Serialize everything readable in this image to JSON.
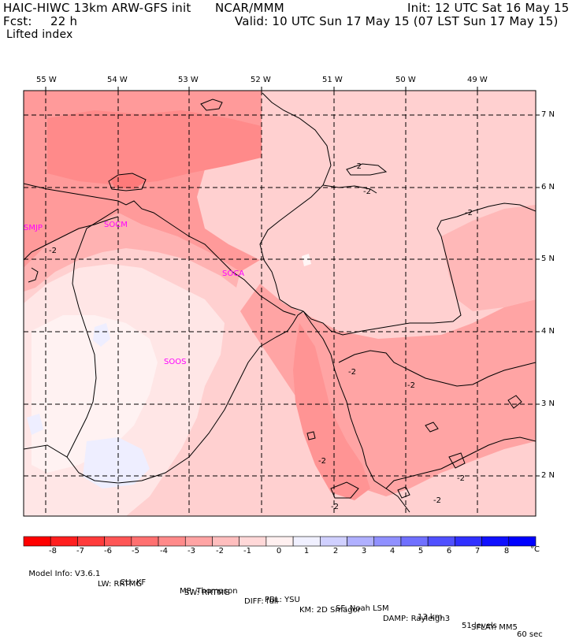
{
  "header": {
    "model_title": "HAIC-HIWC 13km ARW-GFS init",
    "org": "NCAR/MMM",
    "init": "Init: 12 UTC Sat 16 May 15",
    "fcst_label": "Fcst:",
    "fcst_value": "22 h",
    "valid": "Valid: 10 UTC Sun 17 May 15 (07 LST Sun 17 May 15)",
    "field": "Lifted index"
  },
  "axes": {
    "lon_labels": [
      "55 W",
      "54 W",
      "53 W",
      "52 W",
      "51 W",
      "50 W",
      "49 W"
    ],
    "lat_labels": [
      "7 N",
      "6 N",
      "5 N",
      "4 N",
      "3 N",
      "2 N"
    ]
  },
  "stations": [
    "SMJP",
    "SOCM",
    "SOCA",
    "SOOS"
  ],
  "contour_label": "-2",
  "colorbar": {
    "labels": [
      "-8",
      "-7",
      "-6",
      "-5",
      "-4",
      "-3",
      "-2",
      "-1",
      "0",
      "1",
      "2",
      "3",
      "4",
      "5",
      "6",
      "7",
      "8"
    ],
    "unit": "°C",
    "colors": [
      "#ff0000",
      "#ff1f1f",
      "#ff3b3b",
      "#ff5656",
      "#ff7070",
      "#ff8a8a",
      "#ffa4a4",
      "#ffbebe",
      "#ffd8d8",
      "#fff0f0",
      "#f0f0ff",
      "#d0d0ff",
      "#b0b0ff",
      "#9090ff",
      "#7070ff",
      "#5050ff",
      "#3030ff",
      "#1010ff",
      "#0000ff"
    ]
  },
  "footer": {
    "line1": [
      "Model Info: V3.6.1",
      "CU: KF",
      "MP: Thompson",
      "PBL: YSU",
      "SF: Noah LSM",
      "13 km",
      "51 levels",
      "60 sec"
    ],
    "line2": [
      "LW: RRTMG",
      "SW: RRTMG",
      "DIFF: full",
      "KM: 2D Smagor",
      "DAMP: Rayleigh3",
      "SFLAY: MM5"
    ]
  }
}
